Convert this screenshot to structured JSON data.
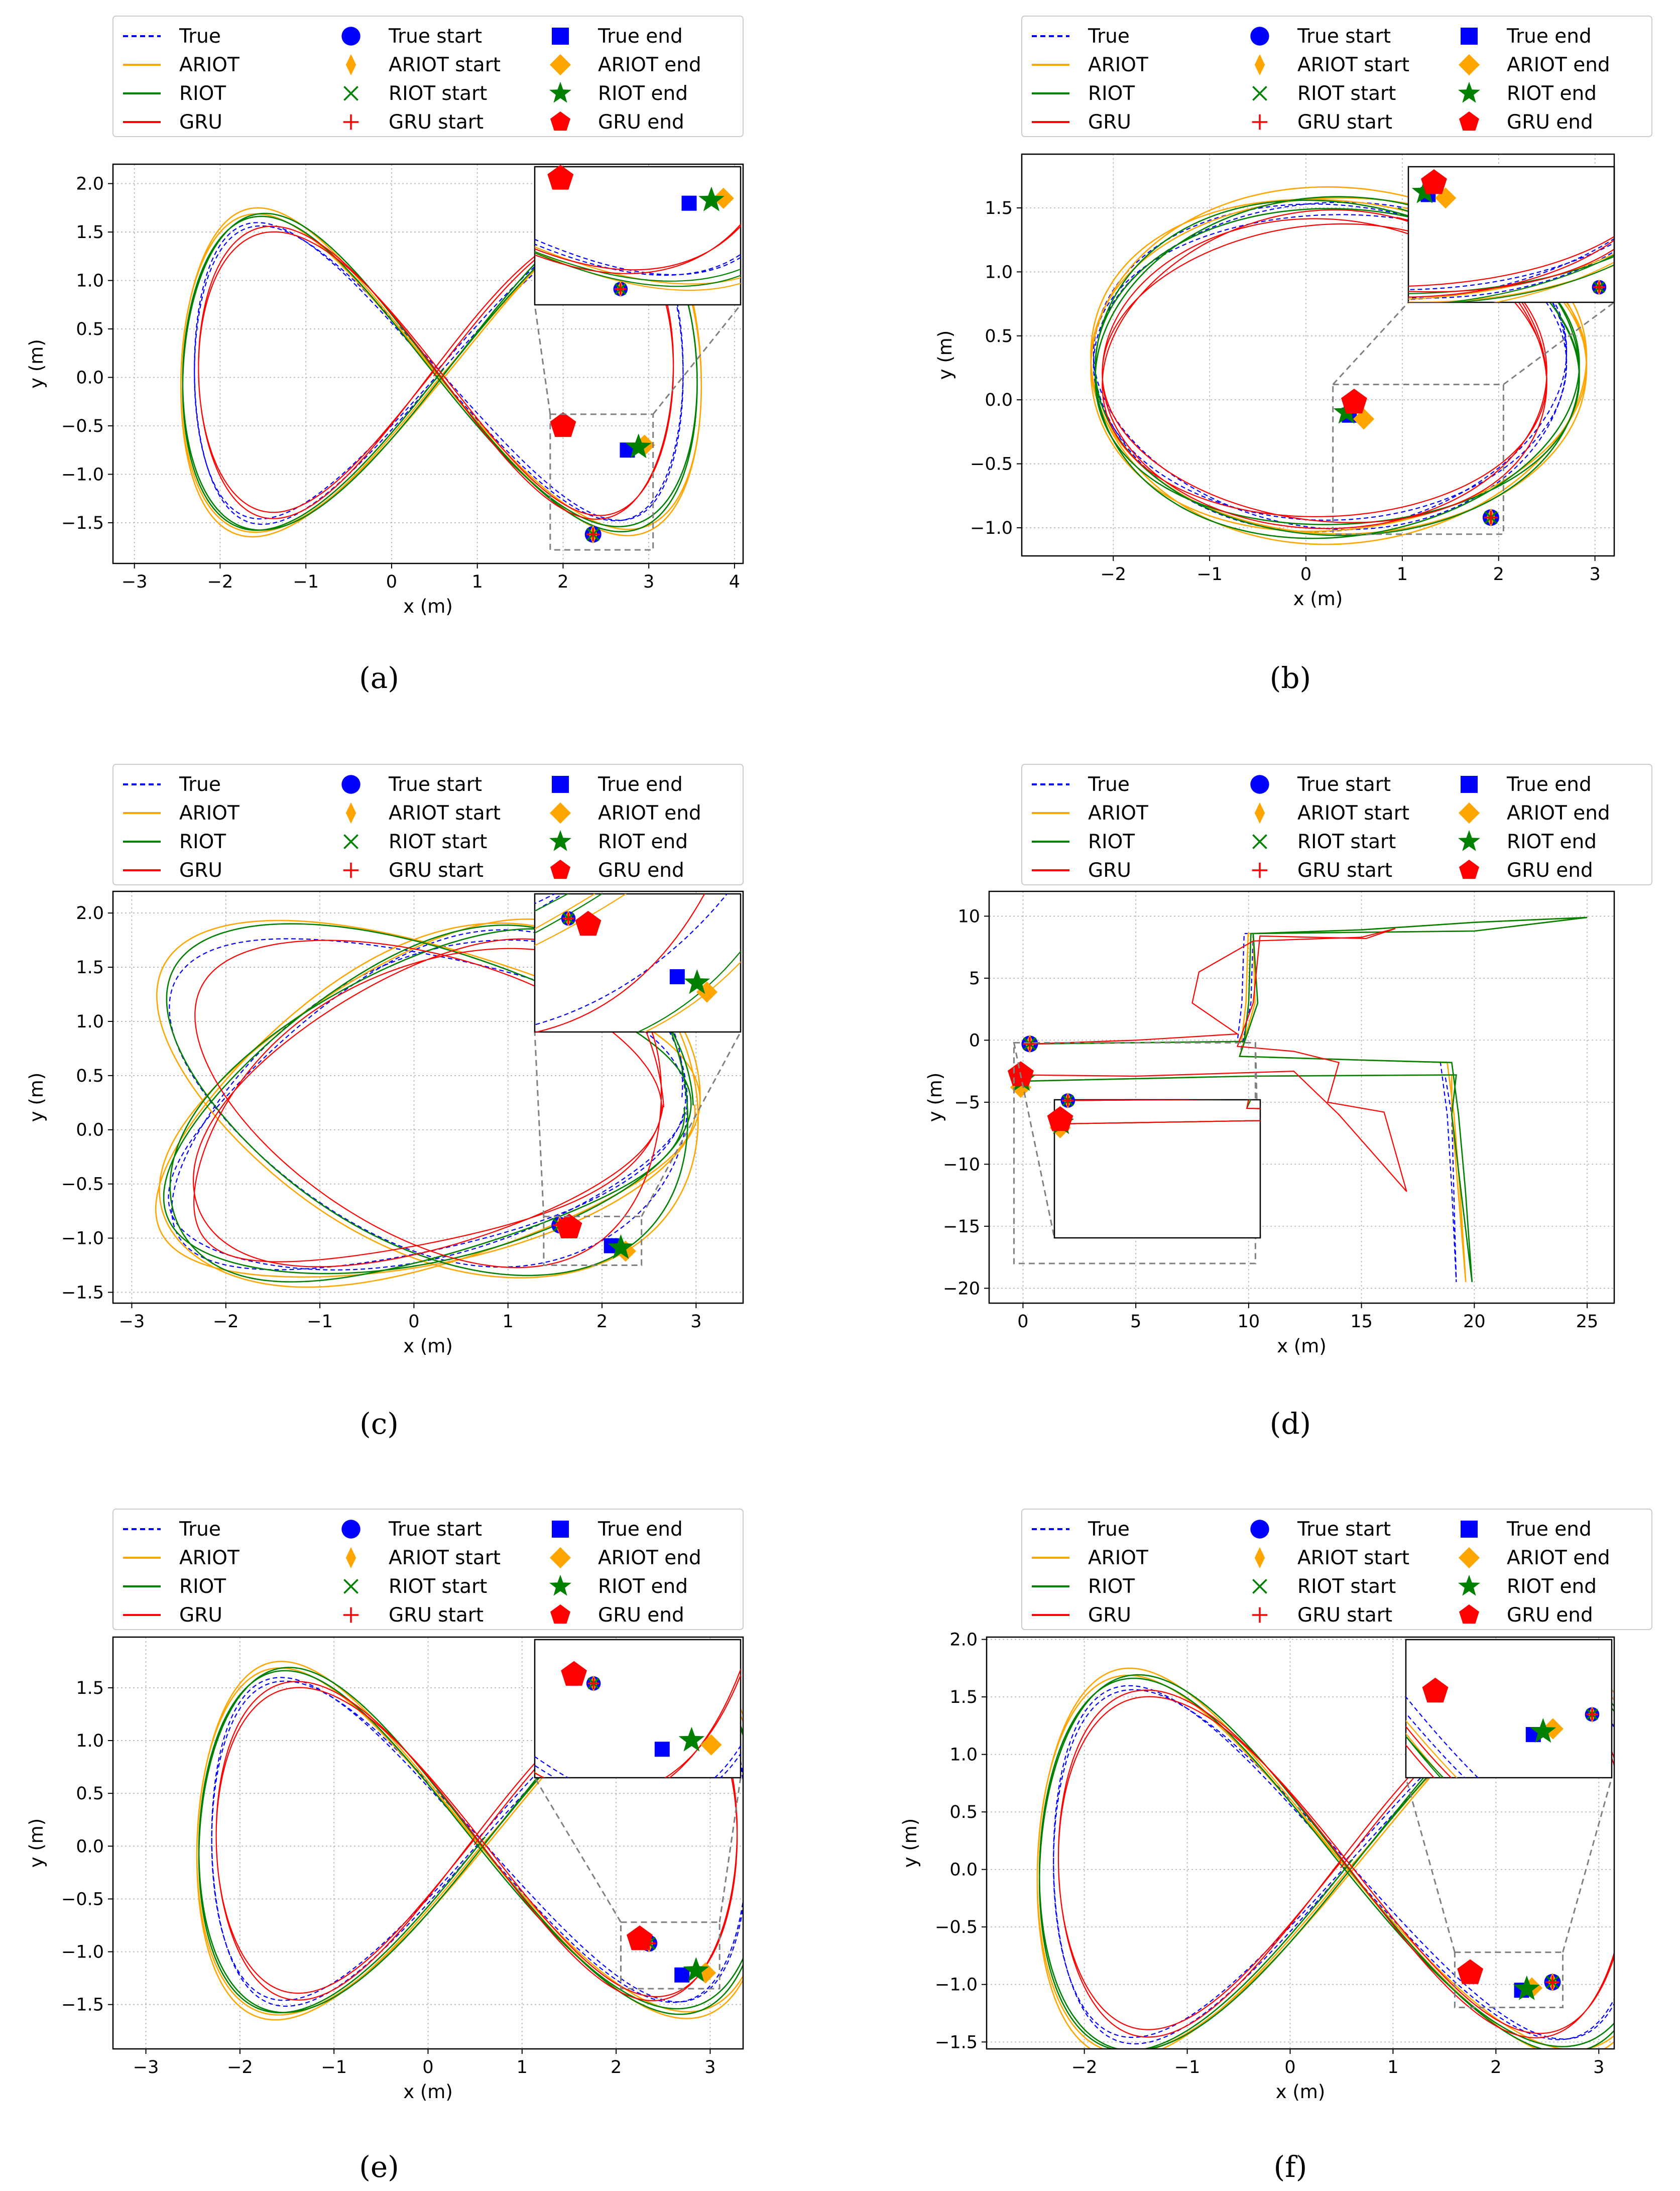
{
  "legend": [
    {
      "label": "True",
      "type": "line",
      "color": "#0000ff",
      "dash": true
    },
    {
      "label": "ARIOT",
      "type": "line",
      "color": "#ffa500"
    },
    {
      "label": "RIOT",
      "type": "line",
      "color": "#008000"
    },
    {
      "label": "GRU",
      "type": "line",
      "color": "#ff0000"
    },
    {
      "label": "True start",
      "type": "marker",
      "marker": "circle",
      "color": "#0000ff"
    },
    {
      "label": "ARIOT start",
      "type": "marker",
      "marker": "thin-diamond",
      "color": "#ffa500"
    },
    {
      "label": "RIOT start",
      "type": "marker",
      "marker": "x",
      "color": "#008000"
    },
    {
      "label": "GRU start",
      "type": "marker",
      "marker": "plus",
      "color": "#ff0000"
    },
    {
      "label": "True end",
      "type": "marker",
      "marker": "square",
      "color": "#0000ff"
    },
    {
      "label": "ARIOT end",
      "type": "marker",
      "marker": "diamond",
      "color": "#ffa500"
    },
    {
      "label": "RIOT end",
      "type": "marker",
      "marker": "star",
      "color": "#008000"
    },
    {
      "label": "GRU end",
      "type": "marker",
      "marker": "pentagon",
      "color": "#ff0000"
    }
  ],
  "chart_data": [
    {
      "id": "a",
      "caption": "(a)",
      "type": "line",
      "xlabel": "x (m)",
      "ylabel": "y (m)",
      "xlim": [
        -3.25,
        4.1
      ],
      "ylim": [
        -1.92,
        2.2
      ],
      "xticks": [
        -3,
        -2,
        -1,
        0,
        1,
        2,
        3,
        4
      ],
      "yticks": [
        -1.5,
        -1.0,
        -0.5,
        0.0,
        0.5,
        1.0,
        1.5,
        2.0
      ],
      "grid": true,
      "shape": "figure8",
      "start": [
        2.35,
        -1.62
      ],
      "ends": {
        "True": [
          2.75,
          -0.75
        ],
        "ARIOT": [
          2.95,
          -0.7
        ],
        "RIOT": [
          2.88,
          -0.72
        ],
        "GRU": [
          2.0,
          -0.5
        ]
      },
      "zoom_region": [
        1.85,
        3.05,
        -1.78,
        -0.38
      ],
      "inset": "top-right"
    },
    {
      "id": "b",
      "caption": "(b)",
      "type": "line",
      "xlabel": "x (m)",
      "ylabel": "y (m)",
      "xlim": [
        -2.95,
        3.2
      ],
      "ylim": [
        -1.22,
        1.92
      ],
      "xticks": [
        -2,
        -1,
        0,
        1,
        2,
        3
      ],
      "yticks": [
        -1.0,
        -0.5,
        0.0,
        0.5,
        1.0,
        1.5
      ],
      "grid": true,
      "shape": "loop",
      "start": [
        1.92,
        -0.92
      ],
      "ends": {
        "True": [
          0.45,
          -0.12
        ],
        "ARIOT": [
          0.6,
          -0.15
        ],
        "RIOT": [
          0.42,
          -0.1
        ],
        "GRU": [
          0.5,
          -0.02
        ]
      },
      "zoom_region": [
        0.28,
        2.05,
        -1.05,
        0.12
      ],
      "inset": "top-right"
    },
    {
      "id": "c",
      "caption": "(c)",
      "type": "line",
      "xlabel": "x (m)",
      "ylabel": "y (m)",
      "xlim": [
        -3.2,
        3.5
      ],
      "ylim": [
        -1.6,
        2.2
      ],
      "xticks": [
        -3,
        -2,
        -1,
        0,
        1,
        2,
        3
      ],
      "yticks": [
        -1.5,
        -1.0,
        -0.5,
        0.0,
        0.5,
        1.0,
        1.5,
        2.0
      ],
      "grid": true,
      "shape": "loops",
      "start": [
        1.55,
        -0.88
      ],
      "ends": {
        "True": [
          2.1,
          -1.07
        ],
        "ARIOT": [
          2.25,
          -1.12
        ],
        "RIOT": [
          2.2,
          -1.09
        ],
        "GRU": [
          1.65,
          -0.9
        ]
      },
      "zoom_region": [
        1.38,
        2.42,
        -1.25,
        -0.8
      ],
      "inset": "top-right"
    },
    {
      "id": "d",
      "caption": "(d)",
      "type": "line",
      "xlabel": "x (m)",
      "ylabel": "y (m)",
      "xlim": [
        -1.5,
        26.2
      ],
      "ylim": [
        -21.2,
        12
      ],
      "xticks": [
        0,
        5,
        10,
        15,
        20,
        25
      ],
      "yticks": [
        -20,
        -15,
        -10,
        -5,
        0,
        5,
        10
      ],
      "grid": true,
      "shape": "corridor",
      "start": [
        0.3,
        -0.3
      ],
      "ends": {
        "True": [
          -0.1,
          -3.3
        ],
        "ARIOT": [
          -0.1,
          -3.8
        ],
        "RIOT": [
          -0.05,
          -3.2
        ],
        "GRU": [
          -0.1,
          -2.8
        ]
      },
      "zoom_region": [
        -0.4,
        10.3,
        -18.0,
        -0.2
      ],
      "inset": "bottom-left"
    },
    {
      "id": "e",
      "caption": "(e)",
      "type": "line",
      "xlabel": "x (m)",
      "ylabel": "y (m)",
      "xlim": [
        -3.35,
        3.35
      ],
      "ylim": [
        -1.92,
        1.98
      ],
      "xticks": [
        -3,
        -2,
        -1,
        0,
        1,
        2,
        3
      ],
      "yticks": [
        -1.5,
        -1.0,
        -0.5,
        0.0,
        0.5,
        1.0,
        1.5
      ],
      "grid": true,
      "shape": "figure8",
      "start": [
        2.35,
        -0.92
      ],
      "ends": {
        "True": [
          2.7,
          -1.22
        ],
        "ARIOT": [
          2.95,
          -1.2
        ],
        "RIOT": [
          2.85,
          -1.18
        ],
        "GRU": [
          2.25,
          -0.88
        ]
      },
      "zoom_region": [
        2.05,
        3.1,
        -1.35,
        -0.72
      ],
      "inset": "top-right"
    },
    {
      "id": "f",
      "caption": "(f)",
      "type": "line",
      "xlabel": "x (m)",
      "ylabel": "y (m)",
      "xlim": [
        -2.95,
        3.15
      ],
      "ylim": [
        -1.56,
        2.02
      ],
      "xticks": [
        -2,
        -1,
        0,
        1,
        2,
        3
      ],
      "yticks": [
        -1.5,
        -1.0,
        -0.5,
        0.0,
        0.5,
        1.0,
        1.5,
        2.0
      ],
      "grid": true,
      "shape": "figure8",
      "start": [
        2.55,
        -0.98
      ],
      "ends": {
        "True": [
          2.25,
          -1.05
        ],
        "ARIOT": [
          2.35,
          -1.03
        ],
        "RIOT": [
          2.3,
          -1.04
        ],
        "GRU": [
          1.75,
          -0.9
        ]
      },
      "zoom_region": [
        1.6,
        2.65,
        -1.2,
        -0.72
      ],
      "inset": "top-right"
    }
  ]
}
